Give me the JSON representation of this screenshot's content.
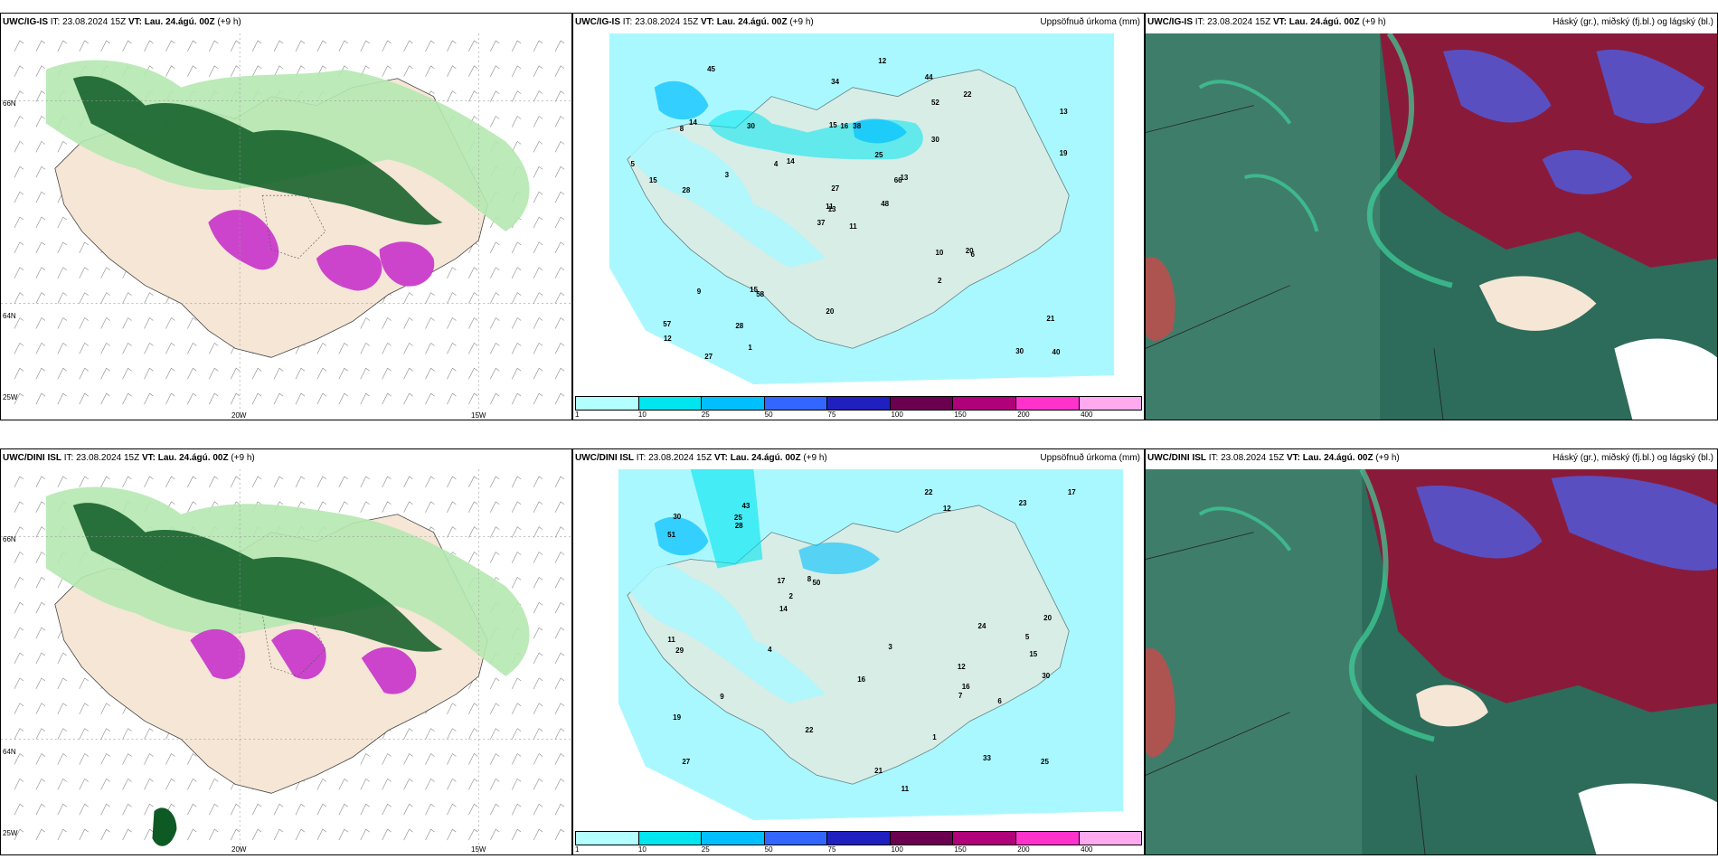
{
  "panels": {
    "top": {
      "left": {
        "model": "UWC/IG-IS",
        "it_label": "IT:",
        "it": "23.08.2024 15Z",
        "vt_label": "VT:",
        "vt": "Lau. 24.ágú. 00Z",
        "lead": "(+9 h)",
        "right": ""
      },
      "middle": {
        "model": "UWC/IG-IS",
        "it_label": "IT:",
        "it": "23.08.2024 15Z",
        "vt_label": "VT:",
        "vt": "Lau. 24.ágú. 00Z",
        "lead": "(+9 h)",
        "right": "Uppsöfnuð úrkoma (mm)"
      },
      "rightp": {
        "model": "UWC/IG-IS",
        "it_label": "IT:",
        "it": "23.08.2024 15Z",
        "vt_label": "VT:",
        "vt": "Lau. 24.ágú. 00Z",
        "lead": "(+9 h)",
        "right": "Háský (gr.), miðský (fj.bl.) og lágský (bl.)"
      }
    },
    "bottom": {
      "left": {
        "model": "UWC/DINI ISL",
        "it_label": "IT:",
        "it": "23.08.2024 15Z",
        "vt_label": "VT:",
        "vt": "Lau. 24.ágú. 00Z",
        "lead": "(+9 h)",
        "right": ""
      },
      "middle": {
        "model": "UWC/DINI ISL",
        "it_label": "IT:",
        "it": "23.08.2024 15Z",
        "vt_label": "VT:",
        "vt": "Lau. 24.ágú. 00Z",
        "lead": "(+9 h)",
        "right": "Uppsöfnuð úrkoma (mm)"
      },
      "rightp": {
        "model": "UWC/DINI ISL",
        "it_label": "IT:",
        "it": "23.08.2024 15Z",
        "vt_label": "VT:",
        "vt": "Lau. 24.ágú. 00Z",
        "lead": "(+9 h)",
        "right": "Háský (gr.), miðský (fj.bl.) og lágský (bl.)"
      }
    }
  },
  "grid_labels": {
    "lat_66": "66N",
    "lat_64": "64N",
    "lon_25": "25W",
    "lon_20": "20W",
    "lon_15": "15W"
  },
  "legend": {
    "ticks": [
      "1",
      "10",
      "25",
      "50",
      "75",
      "100",
      "150",
      "200",
      "400"
    ],
    "colors": [
      "#b3ffff",
      "#00e5ee",
      "#00bfff",
      "#3366ff",
      "#2020c0",
      "#6b0050",
      "#b0007a",
      "#ff33cc",
      "#ffaaee"
    ]
  },
  "colors": {
    "land": "#f5e6d6",
    "light_green": "#b5e8b0",
    "dark_green": "#0d5a24",
    "magenta": "#cc44cc",
    "cyan": "#aaf8ff",
    "cloud_teal": "#2d6b5a",
    "cloud_red": "#8a1a3a",
    "cloud_blue": "#5a4fc0"
  },
  "precip_values_top": [
    "11",
    "8",
    "13",
    "57",
    "66",
    "58",
    "44",
    "38",
    "52",
    "48",
    "45",
    "40",
    "28",
    "13",
    "37",
    "30",
    "27",
    "15",
    "25",
    "9",
    "14",
    "12",
    "28",
    "16",
    "13",
    "6",
    "14",
    "34",
    "15",
    "10",
    "19",
    "11",
    "20",
    "27",
    "30",
    "22",
    "15",
    "30",
    "21",
    "20",
    "12",
    "4",
    "3",
    "2",
    "1",
    "5"
  ],
  "precip_values_bottom": [
    "12",
    "15",
    "27",
    "43",
    "50",
    "33",
    "19",
    "12",
    "17",
    "11",
    "51",
    "11",
    "30",
    "25",
    "22",
    "20",
    "16",
    "3",
    "8",
    "9",
    "17",
    "23",
    "14",
    "30",
    "22",
    "25",
    "16",
    "29",
    "28",
    "24",
    "21",
    "1",
    "2",
    "4",
    "5",
    "6",
    "7"
  ]
}
